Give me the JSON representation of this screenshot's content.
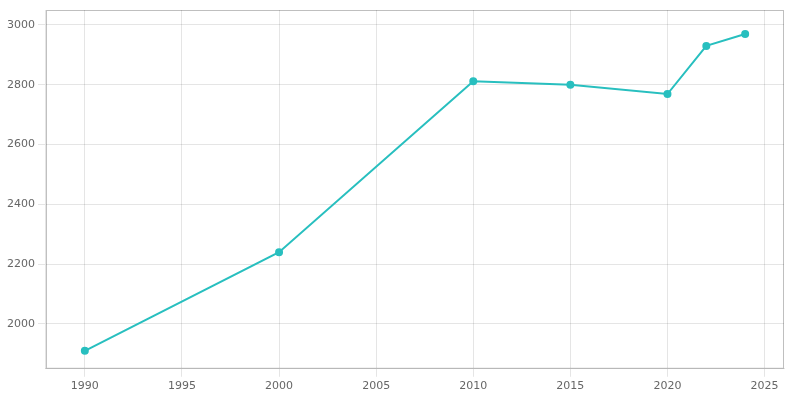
{
  "chart_data": {
    "type": "line",
    "x": [
      1990,
      2000,
      2010,
      2015,
      2020,
      2022,
      2024
    ],
    "values": [
      1910,
      2240,
      2812,
      2800,
      2769,
      2930,
      2970
    ],
    "color": "#28BFBF",
    "marker": "circle",
    "xlim": [
      1988,
      2026
    ],
    "ylim": [
      1850,
      3050
    ],
    "xticks": [
      1990,
      1995,
      2000,
      2005,
      2010,
      2015,
      2020,
      2025
    ],
    "yticks": [
      2000,
      2200,
      2400,
      2600,
      2800,
      3000
    ],
    "grid": true
  }
}
